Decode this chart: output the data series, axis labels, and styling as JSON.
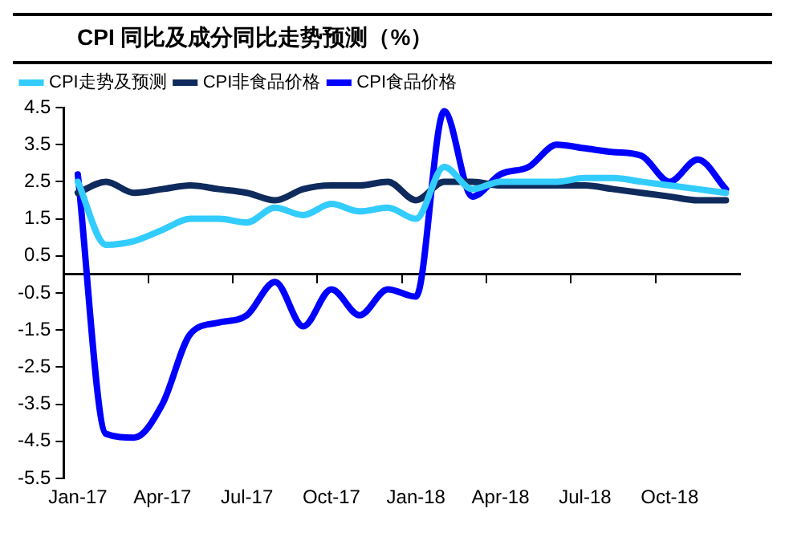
{
  "chart_data": {
    "type": "line",
    "title": "CPI 同比及成分同比走势预测（%）",
    "categories": [
      "Jan-17",
      null,
      null,
      "Apr-17",
      null,
      null,
      "Jul-17",
      null,
      null,
      "Oct-17",
      null,
      null,
      "Jan-18",
      null,
      null,
      "Apr-18",
      null,
      null,
      "Jul-18",
      null,
      null,
      "Oct-18",
      null,
      null
    ],
    "series": [
      {
        "name": "CPI走势及预测",
        "color": "#33ccff",
        "values": [
          2.5,
          0.8,
          0.9,
          1.2,
          1.5,
          1.5,
          1.4,
          1.8,
          1.6,
          1.9,
          1.7,
          1.8,
          1.5,
          2.9,
          2.3,
          2.5,
          2.5,
          2.5,
          2.6,
          2.6,
          2.5,
          2.4,
          2.3,
          2.2
        ]
      },
      {
        "name": "CPI非食品价格",
        "color": "#0f2a5c",
        "values": [
          2.2,
          2.5,
          2.2,
          2.3,
          2.4,
          2.3,
          2.2,
          2.0,
          2.3,
          2.4,
          2.4,
          2.5,
          2.0,
          2.5,
          2.5,
          2.4,
          2.4,
          2.4,
          2.4,
          2.3,
          2.2,
          2.1,
          2.0,
          2.0
        ]
      },
      {
        "name": "CPI食品价格",
        "color": "#0000ff",
        "values": [
          2.7,
          -4.3,
          -4.4,
          -3.5,
          -1.6,
          -1.3,
          -1.1,
          -0.2,
          -1.4,
          -0.4,
          -1.1,
          -0.4,
          -0.6,
          4.4,
          2.1,
          2.7,
          2.9,
          3.5,
          3.4,
          3.3,
          3.2,
          2.5,
          3.1,
          2.3
        ]
      }
    ],
    "ylim": [
      -5.5,
      4.5
    ],
    "yticks": [
      4.5,
      3.5,
      2.5,
      1.5,
      0.5,
      -0.5,
      -1.5,
      -2.5,
      -3.5,
      -4.5,
      -5.5
    ],
    "legend": "top",
    "grid": false,
    "marker": "none",
    "line_style": "solid"
  }
}
